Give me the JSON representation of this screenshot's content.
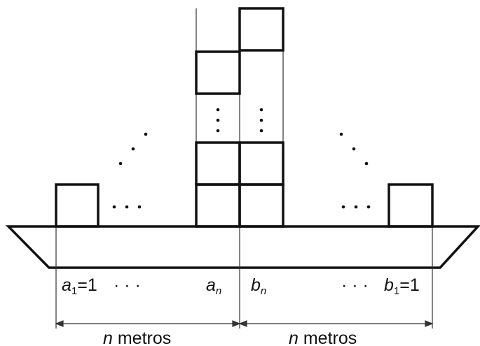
{
  "labels": {
    "a_var": "a",
    "a_one_sub": "1",
    "a_one_eq": "=1",
    "left_dots": "· · ·",
    "a_n_var": "a",
    "a_n_sub": "n",
    "b_n_var": "b",
    "b_n_sub": "n",
    "right_dots": "· · ·",
    "b_var": "b",
    "b_one_sub": "1",
    "b_one_eq": "=1",
    "n_left": "n",
    "metros_left": " metros",
    "n_right": "n",
    "metros_right": " metros"
  }
}
